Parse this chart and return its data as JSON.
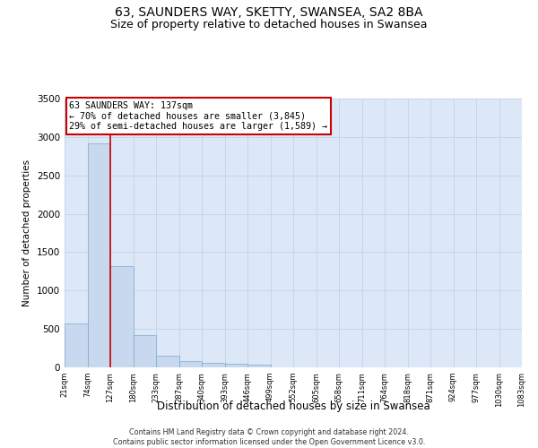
{
  "title": "63, SAUNDERS WAY, SKETTY, SWANSEA, SA2 8BA",
  "subtitle": "Size of property relative to detached houses in Swansea",
  "xlabel_bottom": "Distribution of detached houses by size in Swansea",
  "ylabel": "Number of detached properties",
  "footer_line1": "Contains HM Land Registry data © Crown copyright and database right 2024.",
  "footer_line2": "Contains public sector information licensed under the Open Government Licence v3.0.",
  "bin_labels": [
    "21sqm",
    "74sqm",
    "127sqm",
    "180sqm",
    "233sqm",
    "287sqm",
    "340sqm",
    "393sqm",
    "446sqm",
    "499sqm",
    "552sqm",
    "605sqm",
    "658sqm",
    "711sqm",
    "764sqm",
    "818sqm",
    "871sqm",
    "924sqm",
    "977sqm",
    "1030sqm",
    "1083sqm"
  ],
  "bar_values": [
    570,
    2920,
    1320,
    420,
    155,
    80,
    55,
    45,
    35,
    0,
    0,
    0,
    0,
    0,
    0,
    0,
    0,
    0,
    0,
    0
  ],
  "bar_color": "#c8d8ee",
  "bar_edge_color": "#7aaad0",
  "ylim": [
    0,
    3500
  ],
  "yticks": [
    0,
    500,
    1000,
    1500,
    2000,
    2500,
    3000,
    3500
  ],
  "red_line_x": 2,
  "annotation_text_line1": "63 SAUNDERS WAY: 137sqm",
  "annotation_text_line2": "← 70% of detached houses are smaller (3,845)",
  "annotation_text_line3": "29% of semi-detached houses are larger (1,589) →",
  "annotation_color": "#cc0000",
  "grid_color": "#c8d4e8",
  "background_color": "#dce8f8",
  "title_fontsize": 10,
  "subtitle_fontsize": 9
}
